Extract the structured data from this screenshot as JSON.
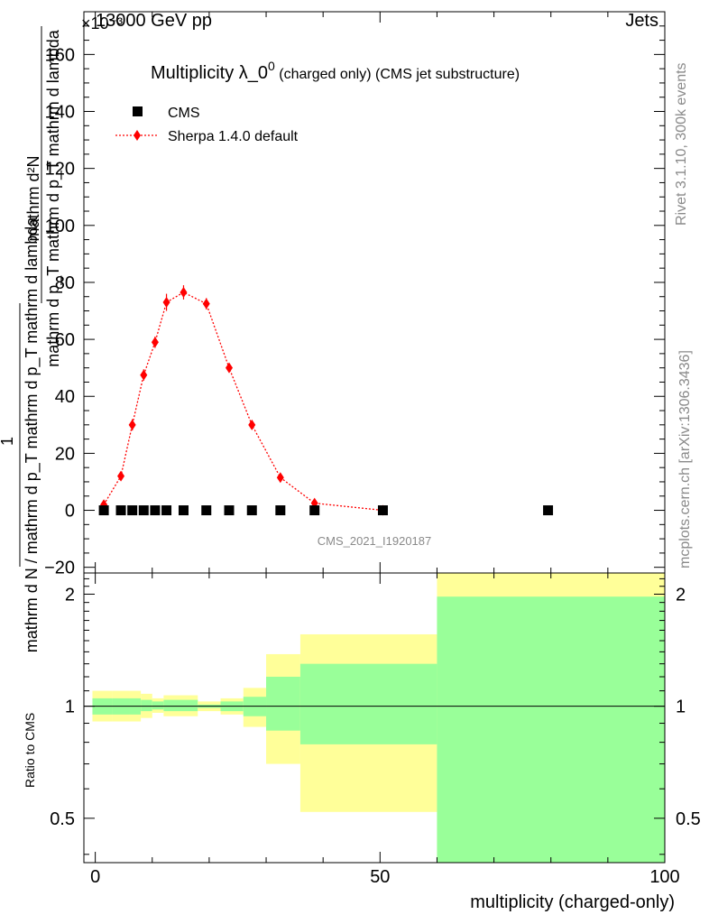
{
  "header": {
    "energy_label": "13000 GeV pp",
    "process_label": "Jets",
    "exponent_label": "×10⁻³"
  },
  "side_labels": {
    "rivet": "Rivet 3.1.10,  300k events",
    "mcplots": "mcplots.cern.ch [arXiv:1306.3436]"
  },
  "watermark": "CMS_2021_I1920187",
  "chart_data": [
    {
      "type": "scatter",
      "title": "Multiplicity λ_0^0 (charged only) (CMS jet substructure)",
      "title_main": "Multiplicity λ_0",
      "title_sup": "0",
      "title_rest": " (charged only) (CMS jet substructure)",
      "ylabel_lines": [
        "1",
        "mathrm d N / mathrm d p_T mathrm d p_T mathrm d lambda",
        "mathrm d²N"
      ],
      "ylabel_numer": "mathrm d²N",
      "ylabel_denom": "mathrm d p_T mathrm d p_T mathrm d lambda",
      "ylabel_prefix": "1",
      "ylabel_left": "mathrm d N / mathrm d p_T mathrm d p_T mathrm d lambda",
      "xlim": [
        -2,
        100
      ],
      "ylim": [
        -22,
        175
      ],
      "yticks": [
        -20,
        0,
        20,
        40,
        60,
        80,
        100,
        120,
        140,
        160
      ],
      "ytick_labels": [
        "−20",
        "0",
        "20",
        "40",
        "60",
        "80",
        "100",
        "120",
        "140",
        "160"
      ],
      "legend_position": "top-left",
      "series": [
        {
          "name": "CMS",
          "color": "#000000",
          "marker": "square",
          "x": [
            1.5,
            4.5,
            6.5,
            8.5,
            10.5,
            12.5,
            15.5,
            19.5,
            23.5,
            27.5,
            32.5,
            38.5,
            50.5,
            79.5
          ],
          "y": [
            0,
            0,
            0,
            0,
            0,
            0,
            0,
            0,
            0,
            0,
            0,
            0,
            0,
            0
          ]
        },
        {
          "name": "Sherpa 1.4.0 default",
          "color": "#ff0000",
          "marker": "diamond",
          "line": "dotted",
          "x": [
            1.5,
            4.5,
            6.5,
            8.5,
            10.5,
            12.5,
            15.5,
            19.5,
            23.5,
            27.5,
            32.5,
            38.5,
            50.5
          ],
          "y": [
            2,
            12,
            30,
            47.5,
            59,
            73,
            76.5,
            72.5,
            50,
            30,
            11.5,
            2.5,
            0
          ],
          "err": [
            1,
            1,
            2,
            2,
            2,
            3,
            2.5,
            2,
            1.5,
            1,
            1,
            0.8,
            0.5
          ]
        }
      ]
    },
    {
      "type": "area",
      "ylabel": "Ratio to CMS",
      "xlabel": "multiplicity (charged-only)",
      "xlim": [
        -2,
        100
      ],
      "ylim": [
        0.38,
        2.28
      ],
      "xticks": [
        0,
        50,
        100
      ],
      "xtick_labels": [
        "0",
        "50",
        "100"
      ],
      "yticks": [
        0.5,
        1,
        2
      ],
      "ytick_labels": [
        "0.5",
        "1",
        "2"
      ],
      "reference_line": 1,
      "bands": {
        "bins": [
          [
            -0.5,
            3
          ],
          [
            3,
            6
          ],
          [
            6,
            8
          ],
          [
            8,
            10
          ],
          [
            10,
            12
          ],
          [
            12,
            18
          ],
          [
            18,
            22
          ],
          [
            22,
            26
          ],
          [
            26,
            30
          ],
          [
            30,
            36
          ],
          [
            36,
            60
          ],
          [
            60,
            100
          ]
        ],
        "total_low": [
          0.91,
          0.91,
          0.91,
          0.93,
          0.96,
          0.94,
          0.97,
          0.95,
          0.88,
          0.7,
          0.52,
          0.3
        ],
        "total_high": [
          1.1,
          1.1,
          1.1,
          1.08,
          1.05,
          1.07,
          1.03,
          1.05,
          1.12,
          1.38,
          1.56,
          2.3
        ],
        "stat_low": [
          0.95,
          0.95,
          0.95,
          0.97,
          0.98,
          0.97,
          0.99,
          0.97,
          0.94,
          0.86,
          0.79,
          0.3
        ],
        "stat_high": [
          1.05,
          1.05,
          1.05,
          1.04,
          1.03,
          1.04,
          1.01,
          1.03,
          1.06,
          1.2,
          1.3,
          1.97
        ],
        "total_color": "#ffff99",
        "stat_color": "#99ff99"
      }
    }
  ]
}
